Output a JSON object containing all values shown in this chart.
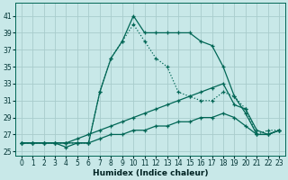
{
  "xlabel": "Humidex (Indice chaleur)",
  "bg_color": "#c8e8e8",
  "grid_color": "#a8cccc",
  "line_color": "#006655",
  "xlim": [
    -0.5,
    23.5
  ],
  "ylim": [
    24.5,
    42.5
  ],
  "xticks": [
    0,
    1,
    2,
    3,
    4,
    5,
    6,
    7,
    8,
    9,
    10,
    11,
    12,
    13,
    14,
    15,
    16,
    17,
    18,
    19,
    20,
    21,
    22,
    23
  ],
  "yticks": [
    25,
    27,
    29,
    31,
    33,
    35,
    37,
    39,
    41
  ],
  "series": [
    {
      "x": [
        0,
        1,
        2,
        3,
        4,
        5,
        6,
        7,
        8,
        9,
        10,
        11,
        12,
        13,
        14,
        15,
        16,
        17,
        18,
        19,
        20,
        21,
        22,
        23
      ],
      "y": [
        26,
        26,
        26,
        26,
        26,
        26,
        26,
        32,
        36,
        38,
        41,
        39,
        39,
        39,
        39,
        39,
        38,
        37.5,
        35,
        31.5,
        29.5,
        27,
        27,
        27.5
      ],
      "linestyle": "-"
    },
    {
      "x": [
        0,
        1,
        2,
        3,
        4,
        5,
        6,
        7,
        8,
        9,
        10,
        11,
        12,
        13,
        14,
        15,
        16,
        17,
        18,
        19,
        20,
        21,
        22,
        23
      ],
      "y": [
        26,
        26,
        26,
        26,
        26,
        26,
        26,
        32,
        36,
        38,
        40,
        38,
        36,
        35,
        32,
        31.5,
        31,
        31,
        32,
        31.5,
        30,
        27,
        27.5,
        27.5
      ],
      "linestyle": ":"
    },
    {
      "x": [
        0,
        1,
        2,
        3,
        4,
        5,
        6,
        7,
        8,
        9,
        10,
        11,
        12,
        13,
        14,
        15,
        16,
        17,
        18,
        19,
        20,
        21,
        22,
        23
      ],
      "y": [
        26,
        26,
        26,
        26,
        26,
        26.5,
        27,
        27.5,
        28,
        28.5,
        29,
        29.5,
        30,
        30.5,
        31,
        31.5,
        32,
        32.5,
        33,
        30.5,
        30,
        27.5,
        27,
        27.5
      ],
      "linestyle": "-"
    },
    {
      "x": [
        0,
        1,
        2,
        3,
        4,
        5,
        6,
        7,
        8,
        9,
        10,
        11,
        12,
        13,
        14,
        15,
        16,
        17,
        18,
        19,
        20,
        21,
        22,
        23
      ],
      "y": [
        26,
        26,
        26,
        26,
        25.5,
        26,
        26,
        26.5,
        27,
        27,
        27.5,
        27.5,
        28,
        28,
        28.5,
        28.5,
        29,
        29,
        29.5,
        29,
        28,
        27,
        27,
        27.5
      ],
      "linestyle": "-"
    }
  ]
}
